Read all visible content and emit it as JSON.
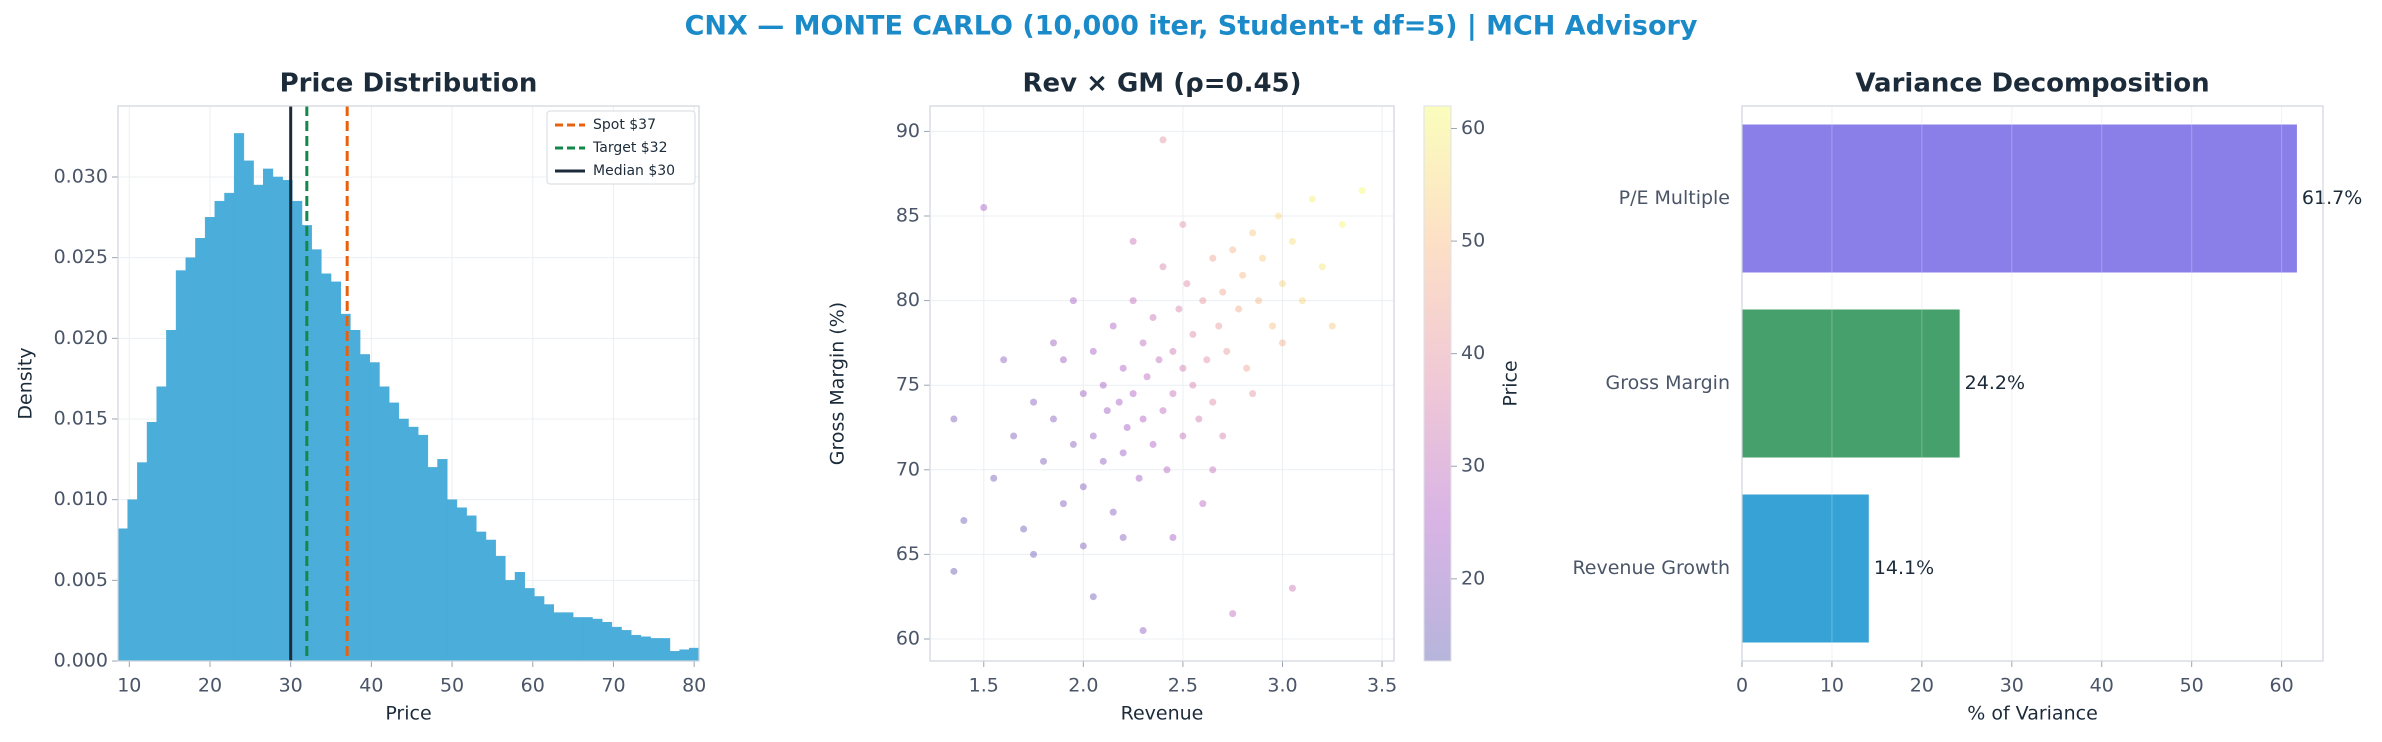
{
  "title": "CNX — MONTE CARLO (10,000 iter, Student-t df=5) | MCH Advisory",
  "chart_data": [
    {
      "type": "histogram",
      "title": "Price Distribution",
      "xlabel": "Price",
      "ylabel": "Density",
      "color": "#4badd9",
      "grid": true,
      "legend": "upper right",
      "bins": [
        8.6,
        9.8,
        11.0,
        12.2,
        13.4,
        14.6,
        15.8,
        17.0,
        18.2,
        19.4,
        20.6,
        21.8,
        23.0,
        24.2,
        25.4,
        26.6,
        27.8,
        29.0,
        30.2,
        31.4,
        32.6,
        33.8,
        35.0,
        36.2,
        37.4,
        38.6,
        39.8,
        41.0,
        42.2,
        43.4,
        44.6,
        45.8,
        47.0,
        48.2,
        49.4,
        50.6,
        51.8,
        53.0,
        54.2,
        55.4,
        56.6,
        57.8,
        59.0,
        60.2,
        61.4,
        62.6,
        63.8,
        65.0,
        66.2,
        67.4,
        68.6,
        69.8,
        71.0,
        72.2,
        73.4,
        74.6,
        75.8,
        77.0,
        78.2,
        79.4,
        80.6
      ],
      "values": [
        0.0082,
        0.01,
        0.0123,
        0.0148,
        0.017,
        0.0205,
        0.0242,
        0.025,
        0.0262,
        0.0275,
        0.0285,
        0.029,
        0.0327,
        0.031,
        0.0295,
        0.0305,
        0.03,
        0.0298,
        0.0285,
        0.027,
        0.0255,
        0.024,
        0.0235,
        0.0215,
        0.0205,
        0.019,
        0.0185,
        0.017,
        0.016,
        0.015,
        0.0145,
        0.014,
        0.012,
        0.0125,
        0.01,
        0.0095,
        0.009,
        0.008,
        0.0075,
        0.0065,
        0.005,
        0.0055,
        0.0045,
        0.004,
        0.0035,
        0.003,
        0.003,
        0.0027,
        0.0027,
        0.0026,
        0.0024,
        0.0021,
        0.0019,
        0.0016,
        0.0015,
        0.0014,
        0.0014,
        0.0006,
        0.0007,
        0.0008
      ],
      "lines": [
        {
          "name": "Spot $37",
          "value": 37,
          "color": "#e8610e",
          "style": "dashed"
        },
        {
          "name": "Target $32",
          "value": 32,
          "color": "#12894a",
          "style": "dashed"
        },
        {
          "name": "Median $30",
          "value": 30,
          "color": "#1c2b3a",
          "style": "solid"
        }
      ],
      "xlim": [
        8.6,
        80.6
      ],
      "xticks": [
        10,
        20,
        30,
        40,
        50,
        60,
        70,
        80
      ],
      "ylim": [
        0,
        0.0344
      ],
      "yticks": [
        {
          "value": 0,
          "label": "0.000"
        },
        {
          "value": 0.005,
          "label": "0.005"
        },
        {
          "value": 0.01,
          "label": "0.010"
        },
        {
          "value": 0.015,
          "label": "0.015"
        },
        {
          "value": 0.02,
          "label": "0.020"
        },
        {
          "value": 0.025,
          "label": "0.025"
        },
        {
          "value": 0.03,
          "label": "0.030"
        }
      ]
    },
    {
      "type": "scatter",
      "title": "Rev × GM (ρ=0.45)",
      "xlabel": "Revenue",
      "ylabel": "Gross Margin (%)",
      "grid": true,
      "alpha": 0.3,
      "colormap": [
        "#0d0887",
        "#7e03a8",
        "#cc4778",
        "#f89540",
        "#f0f921"
      ],
      "clabel": "Price",
      "clim": [
        12.7,
        62
      ],
      "cticks": [
        20,
        30,
        40,
        50,
        60
      ],
      "x": [
        1.4,
        1.55,
        1.65,
        1.7,
        1.75,
        1.8,
        1.85,
        1.9,
        1.9,
        1.95,
        2.0,
        2.0,
        2.05,
        2.05,
        2.1,
        2.1,
        2.12,
        2.15,
        2.15,
        2.18,
        2.2,
        2.2,
        2.22,
        2.25,
        2.25,
        2.28,
        2.3,
        2.3,
        2.32,
        2.35,
        2.35,
        2.38,
        2.4,
        2.4,
        2.42,
        2.45,
        2.45,
        2.48,
        2.5,
        2.5,
        2.52,
        2.55,
        2.55,
        2.58,
        2.6,
        2.62,
        2.65,
        2.65,
        2.68,
        2.7,
        2.72,
        2.75,
        2.78,
        2.8,
        2.82,
        2.85,
        2.88,
        2.9,
        2.95,
        2.98,
        3.0,
        3.05,
        3.1,
        3.15,
        3.2,
        3.3,
        3.4,
        1.35,
        1.35,
        1.5,
        1.6,
        1.75,
        2.3,
        2.4,
        2.75,
        3.05,
        2.0,
        2.2,
        2.6,
        2.5,
        1.95,
        2.7,
        2.85,
        3.0,
        3.25,
        1.85,
        2.25,
        2.05,
        2.45,
        2.65
      ],
      "y": [
        67.0,
        69.5,
        72.0,
        66.5,
        74.0,
        70.5,
        73.0,
        68.0,
        76.5,
        71.5,
        74.5,
        69.0,
        72.0,
        77.0,
        75.0,
        70.5,
        73.5,
        67.5,
        78.5,
        74.0,
        71.0,
        76.0,
        72.5,
        80.0,
        74.5,
        69.5,
        77.5,
        73.0,
        75.5,
        71.5,
        79.0,
        76.5,
        73.5,
        82.0,
        70.0,
        77.0,
        74.5,
        79.5,
        72.0,
        76.0,
        81.0,
        75.0,
        78.0,
        73.0,
        80.0,
        76.5,
        82.5,
        74.0,
        78.5,
        80.5,
        77.0,
        83.0,
        79.5,
        81.5,
        76.0,
        84.0,
        80.0,
        82.5,
        78.5,
        85.0,
        81.0,
        83.5,
        80.0,
        86.0,
        82.0,
        84.5,
        86.5,
        64.0,
        73.0,
        85.5,
        76.5,
        65.0,
        60.5,
        89.5,
        61.5,
        63.0,
        65.5,
        66.0,
        68.0,
        84.5,
        80.0,
        72.0,
        74.5,
        77.5,
        78.5,
        77.5,
        83.5,
        62.5,
        66.0,
        70.0
      ],
      "c": [
        15,
        16,
        17,
        15,
        19,
        17,
        19,
        17,
        22,
        19,
        22,
        18,
        21,
        24,
        23,
        20,
        22,
        19,
        26,
        24,
        22,
        26,
        23,
        30,
        26,
        23,
        29,
        26,
        28,
        26,
        32,
        30,
        29,
        36,
        27,
        33,
        31,
        36,
        31,
        34,
        38,
        35,
        37,
        34,
        41,
        39,
        44,
        38,
        42,
        45,
        42,
        48,
        46,
        49,
        44,
        52,
        49,
        53,
        50,
        56,
        54,
        57,
        55,
        60,
        58,
        61,
        62,
        14,
        17,
        24,
        20,
        15,
        20,
        40,
        30,
        33,
        17,
        19,
        28,
        40,
        24,
        35,
        40,
        47,
        52,
        21,
        32,
        16,
        24,
        31
      ],
      "xlim": [
        1.23,
        3.56
      ],
      "xticks": [
        1.5,
        {
          "value": 2,
          "label": "2.0"
        },
        2.5,
        {
          "value": 3,
          "label": "3.0"
        },
        3.5
      ],
      "ylim": [
        58.7,
        91.5
      ],
      "yticks": [
        60,
        65,
        70,
        75,
        80,
        85,
        90
      ]
    },
    {
      "type": "barh",
      "title": "Variance Decomposition",
      "xlabel": "% of Variance",
      "grid": true,
      "categories": [
        "Revenue Growth",
        "Gross Margin",
        "P/E Multiple"
      ],
      "values": [
        14.1,
        24.2,
        61.7
      ],
      "value_labels": [
        "14.1%",
        "24.2%",
        "61.7%"
      ],
      "colors": [
        "#36a2d6",
        "#46a06b",
        "#8a7fe8"
      ],
      "xlim": [
        0,
        64.6
      ],
      "xticks": [
        0,
        10,
        20,
        30,
        40,
        50,
        60
      ]
    }
  ]
}
